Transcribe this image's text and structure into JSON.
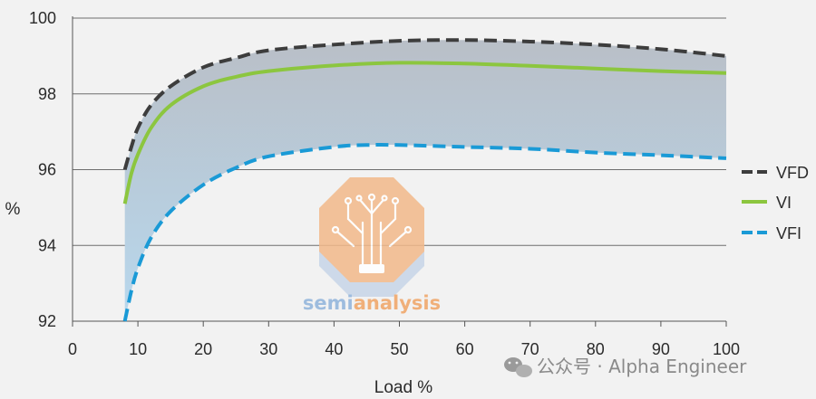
{
  "chart_data": {
    "type": "line",
    "title": "",
    "xlabel": "Load %",
    "ylabel": "%",
    "xlim": [
      0,
      100
    ],
    "ylim": [
      92,
      100
    ],
    "x_ticks": [
      0,
      10,
      20,
      30,
      40,
      50,
      60,
      70,
      80,
      90,
      100
    ],
    "y_ticks": [
      92,
      94,
      96,
      98,
      100
    ],
    "grid": "horizontal",
    "legend_position": "right",
    "shaded_band": {
      "between": [
        "VFD",
        "VFI"
      ],
      "note": "region between VFD and VFI curves is shaded"
    },
    "series": [
      {
        "name": "VFD",
        "style": "dashed",
        "color": "#3d3d3d",
        "x": [
          8,
          9,
          10,
          12,
          15,
          20,
          25,
          30,
          40,
          50,
          60,
          70,
          80,
          90,
          100
        ],
        "y": [
          96.0,
          96.6,
          97.1,
          97.7,
          98.2,
          98.7,
          98.95,
          99.15,
          99.3,
          99.4,
          99.42,
          99.38,
          99.3,
          99.18,
          99.0
        ]
      },
      {
        "name": "VI",
        "style": "solid",
        "color": "#8cc63f",
        "x": [
          8,
          9,
          10,
          12,
          15,
          20,
          25,
          30,
          40,
          50,
          60,
          70,
          80,
          90,
          100
        ],
        "y": [
          95.1,
          95.9,
          96.4,
          97.1,
          97.7,
          98.2,
          98.45,
          98.6,
          98.75,
          98.82,
          98.8,
          98.74,
          98.67,
          98.6,
          98.55
        ]
      },
      {
        "name": "VFI",
        "style": "dashed",
        "color": "#1a9ad6",
        "x": [
          8,
          9,
          10,
          12,
          15,
          20,
          25,
          30,
          40,
          45,
          50,
          60,
          70,
          80,
          90,
          100
        ],
        "y": [
          92.0,
          92.8,
          93.4,
          94.2,
          94.9,
          95.6,
          96.05,
          96.35,
          96.6,
          96.65,
          96.65,
          96.6,
          96.55,
          96.45,
          96.38,
          96.3
        ]
      }
    ]
  },
  "legend": [
    "VFD",
    "VI",
    "VFI"
  ],
  "watermark": {
    "part1": "semi",
    "part2": "analysis"
  },
  "credit": {
    "prefix": "公众号 · ",
    "name": "Alpha Engineer"
  },
  "colors": {
    "grid": "#6e6e6e",
    "band_top": "#b9bfc7",
    "band_bottom": "#b8d8ee",
    "wm_orange": "#f2a96b",
    "wm_blue": "#9fc0e0"
  }
}
